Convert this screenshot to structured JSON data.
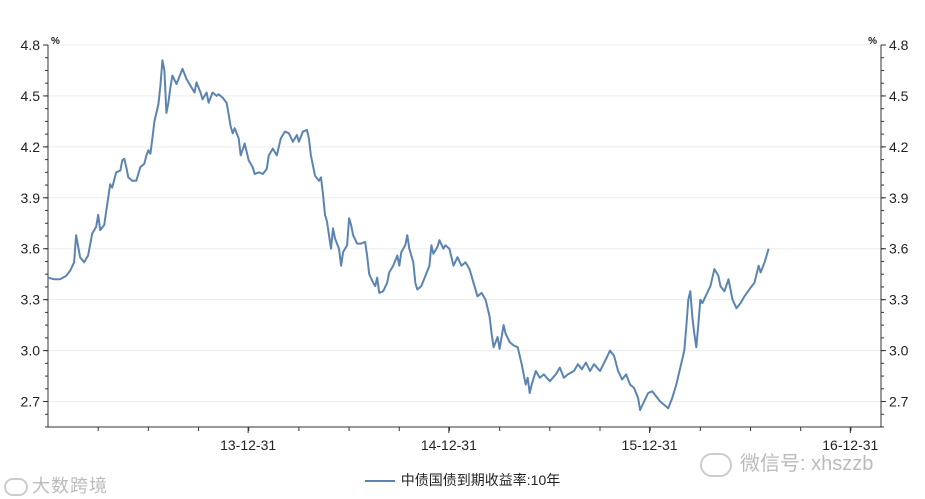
{
  "chart_data": {
    "type": "line",
    "title": "",
    "xlabel": "",
    "ylabel": "%",
    "ylabel_right": "%",
    "y_ticks": [
      "2.7",
      "3.0",
      "3.3",
      "3.6",
      "3.9",
      "4.2",
      "4.5",
      "4.8"
    ],
    "ylim": [
      2.55,
      4.8
    ],
    "x_ticks": [
      "13-12-31",
      "14-12-31",
      "15-12-31",
      "16-12-31"
    ],
    "x_tick_positions": [
      2013.997,
      2014.997,
      2015.997,
      2016.997
    ],
    "xlim": [
      2013.0,
      2017.15
    ],
    "grid": "horizontal",
    "legend_position": "bottom-center",
    "series": [
      {
        "name": "中债国债到期收益率:10年",
        "color": "#5b84b1",
        "points": [
          [
            2013.0,
            3.43
          ],
          [
            2013.03,
            3.42
          ],
          [
            2013.06,
            3.42
          ],
          [
            2013.09,
            3.44
          ],
          [
            2013.11,
            3.47
          ],
          [
            2013.13,
            3.52
          ],
          [
            2013.14,
            3.68
          ],
          [
            2013.16,
            3.55
          ],
          [
            2013.18,
            3.52
          ],
          [
            2013.2,
            3.56
          ],
          [
            2013.22,
            3.69
          ],
          [
            2013.24,
            3.73
          ],
          [
            2013.25,
            3.8
          ],
          [
            2013.26,
            3.71
          ],
          [
            2013.28,
            3.74
          ],
          [
            2013.3,
            3.9
          ],
          [
            2013.31,
            3.98
          ],
          [
            2013.32,
            3.96
          ],
          [
            2013.34,
            4.05
          ],
          [
            2013.36,
            4.06
          ],
          [
            2013.37,
            4.12
          ],
          [
            2013.38,
            4.13
          ],
          [
            2013.39,
            4.08
          ],
          [
            2013.4,
            4.02
          ],
          [
            2013.42,
            4.0
          ],
          [
            2013.44,
            4.0
          ],
          [
            2013.46,
            4.08
          ],
          [
            2013.48,
            4.1
          ],
          [
            2013.49,
            4.15
          ],
          [
            2013.5,
            4.18
          ],
          [
            2013.51,
            4.16
          ],
          [
            2013.52,
            4.25
          ],
          [
            2013.53,
            4.35
          ],
          [
            2013.55,
            4.45
          ],
          [
            2013.56,
            4.56
          ],
          [
            2013.57,
            4.71
          ],
          [
            2013.58,
            4.65
          ],
          [
            2013.59,
            4.4
          ],
          [
            2013.6,
            4.46
          ],
          [
            2013.61,
            4.55
          ],
          [
            2013.62,
            4.62
          ],
          [
            2013.64,
            4.57
          ],
          [
            2013.65,
            4.6
          ],
          [
            2013.67,
            4.66
          ],
          [
            2013.69,
            4.6
          ],
          [
            2013.7,
            4.58
          ],
          [
            2013.72,
            4.54
          ],
          [
            2013.73,
            4.52
          ],
          [
            2013.74,
            4.58
          ],
          [
            2013.76,
            4.52
          ],
          [
            2013.77,
            4.48
          ],
          [
            2013.79,
            4.52
          ],
          [
            2013.8,
            4.46
          ],
          [
            2013.82,
            4.52
          ],
          [
            2013.84,
            4.5
          ],
          [
            2013.85,
            4.51
          ],
          [
            2013.87,
            4.49
          ],
          [
            2013.89,
            4.46
          ],
          [
            2013.9,
            4.39
          ],
          [
            2013.91,
            4.32
          ],
          [
            2013.92,
            4.28
          ],
          [
            2013.93,
            4.31
          ],
          [
            2013.95,
            4.25
          ],
          [
            2013.96,
            4.15
          ],
          [
            2013.98,
            4.22
          ],
          [
            2014.0,
            4.12
          ],
          [
            2014.02,
            4.08
          ],
          [
            2014.03,
            4.04
          ],
          [
            2014.05,
            4.05
          ],
          [
            2014.07,
            4.04
          ],
          [
            2014.09,
            4.07
          ],
          [
            2014.1,
            4.15
          ],
          [
            2014.12,
            4.19
          ],
          [
            2014.14,
            4.15
          ],
          [
            2014.16,
            4.25
          ],
          [
            2014.18,
            4.29
          ],
          [
            2014.2,
            4.28
          ],
          [
            2014.22,
            4.23
          ],
          [
            2014.24,
            4.27
          ],
          [
            2014.25,
            4.23
          ],
          [
            2014.27,
            4.29
          ],
          [
            2014.29,
            4.3
          ],
          [
            2014.3,
            4.25
          ],
          [
            2014.31,
            4.15
          ],
          [
            2014.33,
            4.03
          ],
          [
            2014.35,
            4.0
          ],
          [
            2014.36,
            4.02
          ],
          [
            2014.37,
            3.92
          ],
          [
            2014.38,
            3.8
          ],
          [
            2014.39,
            3.76
          ],
          [
            2014.4,
            3.68
          ],
          [
            2014.41,
            3.6
          ],
          [
            2014.42,
            3.72
          ],
          [
            2014.43,
            3.66
          ],
          [
            2014.45,
            3.6
          ],
          [
            2014.46,
            3.5
          ],
          [
            2014.47,
            3.58
          ],
          [
            2014.49,
            3.62
          ],
          [
            2014.5,
            3.78
          ],
          [
            2014.51,
            3.74
          ],
          [
            2014.52,
            3.68
          ],
          [
            2014.54,
            3.63
          ],
          [
            2014.56,
            3.63
          ],
          [
            2014.58,
            3.64
          ],
          [
            2014.59,
            3.56
          ],
          [
            2014.6,
            3.45
          ],
          [
            2014.62,
            3.4
          ],
          [
            2014.63,
            3.38
          ],
          [
            2014.64,
            3.43
          ],
          [
            2014.65,
            3.34
          ],
          [
            2014.67,
            3.35
          ],
          [
            2014.69,
            3.4
          ],
          [
            2014.7,
            3.46
          ],
          [
            2014.72,
            3.5
          ],
          [
            2014.74,
            3.56
          ],
          [
            2014.75,
            3.5
          ],
          [
            2014.76,
            3.58
          ],
          [
            2014.78,
            3.62
          ],
          [
            2014.79,
            3.68
          ],
          [
            2014.8,
            3.6
          ],
          [
            2014.82,
            3.52
          ],
          [
            2014.83,
            3.4
          ],
          [
            2014.84,
            3.36
          ],
          [
            2014.86,
            3.38
          ],
          [
            2014.88,
            3.44
          ],
          [
            2014.9,
            3.5
          ],
          [
            2014.91,
            3.62
          ],
          [
            2014.92,
            3.57
          ],
          [
            2014.94,
            3.61
          ],
          [
            2014.95,
            3.65
          ],
          [
            2014.97,
            3.6
          ],
          [
            2014.98,
            3.62
          ],
          [
            2015.0,
            3.6
          ],
          [
            2015.02,
            3.5
          ],
          [
            2015.04,
            3.55
          ],
          [
            2015.06,
            3.5
          ],
          [
            2015.08,
            3.52
          ],
          [
            2015.1,
            3.48
          ],
          [
            2015.12,
            3.4
          ],
          [
            2015.14,
            3.32
          ],
          [
            2015.16,
            3.34
          ],
          [
            2015.18,
            3.3
          ],
          [
            2015.2,
            3.2
          ],
          [
            2015.21,
            3.1
          ],
          [
            2015.22,
            3.02
          ],
          [
            2015.24,
            3.08
          ],
          [
            2015.25,
            3.01
          ],
          [
            2015.27,
            3.15
          ],
          [
            2015.28,
            3.1
          ],
          [
            2015.3,
            3.05
          ],
          [
            2015.32,
            3.03
          ],
          [
            2015.34,
            3.02
          ],
          [
            2015.36,
            2.92
          ],
          [
            2015.38,
            2.8
          ],
          [
            2015.39,
            2.84
          ],
          [
            2015.4,
            2.75
          ],
          [
            2015.41,
            2.8
          ],
          [
            2015.43,
            2.88
          ],
          [
            2015.45,
            2.84
          ],
          [
            2015.47,
            2.86
          ],
          [
            2015.5,
            2.82
          ],
          [
            2015.53,
            2.86
          ],
          [
            2015.55,
            2.9
          ],
          [
            2015.57,
            2.84
          ],
          [
            2015.59,
            2.86
          ],
          [
            2015.62,
            2.88
          ],
          [
            2015.64,
            2.92
          ],
          [
            2015.66,
            2.89
          ],
          [
            2015.68,
            2.93
          ],
          [
            2015.7,
            2.88
          ],
          [
            2015.72,
            2.92
          ],
          [
            2015.75,
            2.88
          ],
          [
            2015.78,
            2.95
          ],
          [
            2015.8,
            3.0
          ],
          [
            2015.82,
            2.97
          ],
          [
            2015.84,
            2.88
          ],
          [
            2015.86,
            2.83
          ],
          [
            2015.88,
            2.86
          ],
          [
            2015.9,
            2.8
          ],
          [
            2015.92,
            2.78
          ],
          [
            2015.94,
            2.72
          ],
          [
            2015.95,
            2.65
          ],
          [
            2015.97,
            2.7
          ],
          [
            2015.99,
            2.75
          ],
          [
            2016.01,
            2.76
          ],
          [
            2016.03,
            2.73
          ],
          [
            2016.05,
            2.7
          ],
          [
            2016.07,
            2.68
          ],
          [
            2016.09,
            2.66
          ],
          [
            2016.11,
            2.72
          ],
          [
            2016.13,
            2.8
          ],
          [
            2016.15,
            2.9
          ],
          [
            2016.17,
            3.0
          ],
          [
            2016.18,
            3.14
          ],
          [
            2016.19,
            3.3
          ],
          [
            2016.2,
            3.35
          ],
          [
            2016.21,
            3.2
          ],
          [
            2016.22,
            3.1
          ],
          [
            2016.23,
            3.02
          ],
          [
            2016.24,
            3.15
          ],
          [
            2016.25,
            3.3
          ],
          [
            2016.26,
            3.28
          ],
          [
            2016.28,
            3.33
          ],
          [
            2016.3,
            3.38
          ],
          [
            2016.32,
            3.48
          ],
          [
            2016.34,
            3.44
          ],
          [
            2016.35,
            3.38
          ],
          [
            2016.37,
            3.35
          ],
          [
            2016.39,
            3.42
          ],
          [
            2016.41,
            3.3
          ],
          [
            2016.43,
            3.25
          ],
          [
            2016.45,
            3.28
          ],
          [
            2016.47,
            3.32
          ],
          [
            2016.5,
            3.37
          ],
          [
            2016.52,
            3.4
          ],
          [
            2016.54,
            3.5
          ],
          [
            2016.55,
            3.46
          ],
          [
            2016.57,
            3.52
          ],
          [
            2016.58,
            3.56
          ],
          [
            2016.59,
            3.6
          ]
        ]
      }
    ]
  },
  "legend": {
    "label": "中债国债到期收益率:10年"
  },
  "watermarks": {
    "left": "大数跨境",
    "right": "微信号: xhszzb"
  }
}
